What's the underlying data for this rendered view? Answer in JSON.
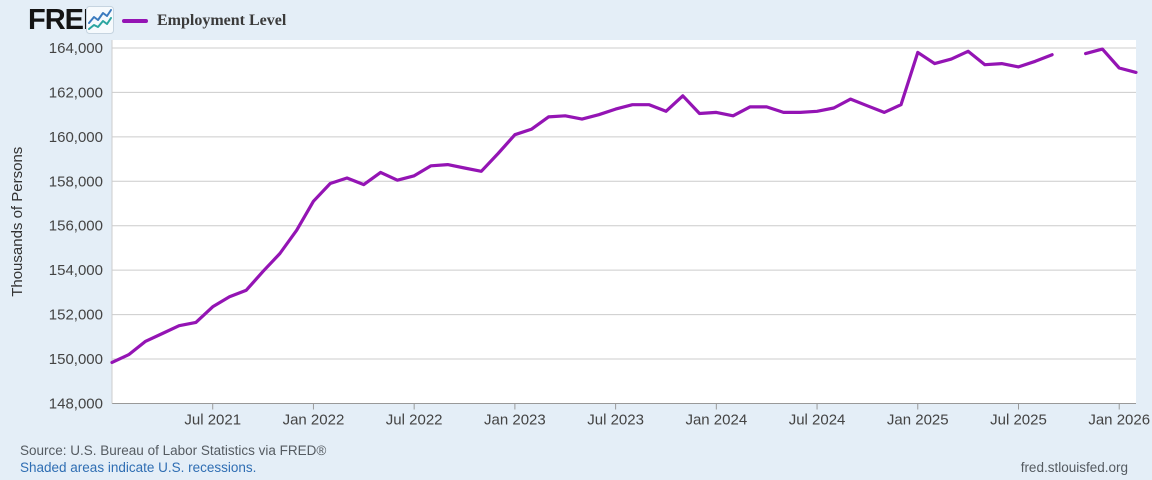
{
  "header": {
    "logo_text": "FRED",
    "logo_mark": ".",
    "legend": {
      "label": "Employment Level",
      "swatch_color": "#9414b4"
    }
  },
  "chart_data": {
    "type": "line",
    "title": "Employment Level",
    "ylabel": "Thousands of Persons",
    "xlabel": "",
    "grid": true,
    "legend_position": "top-left",
    "line_color": "#9414b4",
    "ylim": [
      148000,
      164360
    ],
    "y_ticks": [
      148000,
      150000,
      152000,
      154000,
      156000,
      158000,
      160000,
      162000,
      164000
    ],
    "x_tick_labels": [
      "Jul 2021",
      "Jan 2022",
      "Jul 2022",
      "Jan 2023",
      "Jul 2023",
      "Jan 2024",
      "Jul 2024",
      "Jan 2025",
      "Jul 2025",
      "Jan 2026"
    ],
    "x_tick_indices": [
      6,
      12,
      18,
      24,
      30,
      36,
      42,
      48,
      54,
      60
    ],
    "note": "gap in series at 2025-10 (missing observation)",
    "x": [
      "2021-01",
      "2021-02",
      "2021-03",
      "2021-04",
      "2021-05",
      "2021-06",
      "2021-07",
      "2021-08",
      "2021-09",
      "2021-10",
      "2021-11",
      "2021-12",
      "2022-01",
      "2022-02",
      "2022-03",
      "2022-04",
      "2022-05",
      "2022-06",
      "2022-07",
      "2022-08",
      "2022-09",
      "2022-10",
      "2022-11",
      "2022-12",
      "2023-01",
      "2023-02",
      "2023-03",
      "2023-04",
      "2023-05",
      "2023-06",
      "2023-07",
      "2023-08",
      "2023-09",
      "2023-10",
      "2023-11",
      "2023-12",
      "2024-01",
      "2024-02",
      "2024-03",
      "2024-04",
      "2024-05",
      "2024-06",
      "2024-07",
      "2024-08",
      "2024-09",
      "2024-10",
      "2024-11",
      "2024-12",
      "2025-01",
      "2025-02",
      "2025-03",
      "2025-04",
      "2025-05",
      "2025-06",
      "2025-07",
      "2025-08",
      "2025-09",
      "2025-10",
      "2025-11",
      "2025-12",
      "2026-01",
      "2026-02"
    ],
    "series": [
      {
        "name": "Employment Level",
        "values": [
          149850,
          150200,
          150800,
          151150,
          151500,
          151650,
          152350,
          152800,
          153100,
          153950,
          154750,
          155800,
          157100,
          157900,
          158150,
          157850,
          158400,
          158050,
          158250,
          158700,
          158750,
          158600,
          158450,
          159250,
          160100,
          160350,
          160900,
          160950,
          160800,
          161000,
          161250,
          161450,
          161450,
          161150,
          161850,
          161050,
          161100,
          160950,
          161350,
          161350,
          161100,
          161100,
          161150,
          161300,
          161700,
          161400,
          161100,
          161450,
          163800,
          163300,
          163500,
          163850,
          163250,
          163300,
          163150,
          163400,
          163700,
          null,
          163750,
          163950,
          163100,
          162900
        ]
      }
    ]
  },
  "footer": {
    "source": "Source: U.S. Bureau of Labor Statistics via FRED®",
    "recession_note": "Shaded areas indicate U.S. recessions.",
    "site_url": "fred.stlouisfed.org"
  },
  "colors": {
    "page_background": "#e4eef7",
    "plot_background": "#ffffff",
    "gridline": "#cccccc",
    "axis_line": "#999999",
    "tick_label": "#444444",
    "link_blue": "#2f6eb3",
    "footer_text": "#555b61",
    "line": "#9414b4"
  }
}
